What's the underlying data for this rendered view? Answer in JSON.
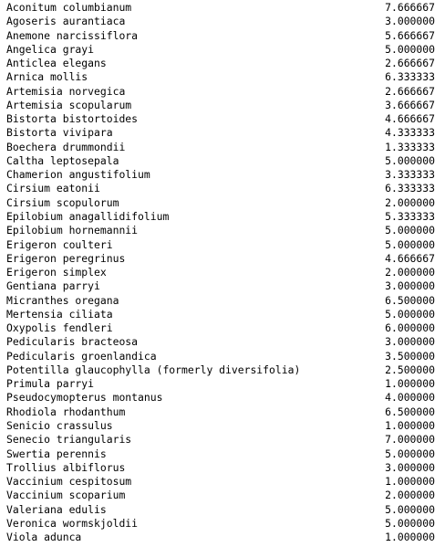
{
  "rows": [
    {
      "name": "Aconitum columbianum",
      "value": "7.666667"
    },
    {
      "name": "Agoseris aurantiaca",
      "value": "3.000000"
    },
    {
      "name": "Anemone narcissiflora",
      "value": "5.666667"
    },
    {
      "name": "Angelica grayi",
      "value": "5.000000"
    },
    {
      "name": "Anticlea elegans",
      "value": "2.666667"
    },
    {
      "name": "Arnica mollis",
      "value": "6.333333"
    },
    {
      "name": "Artemisia norvegica",
      "value": "2.666667"
    },
    {
      "name": "Artemisia scopularum",
      "value": "3.666667"
    },
    {
      "name": "Bistorta bistortoides",
      "value": "4.666667"
    },
    {
      "name": "Bistorta vivipara",
      "value": "4.333333"
    },
    {
      "name": "Boechera drummondii",
      "value": "1.333333"
    },
    {
      "name": "Caltha leptosepala",
      "value": "5.000000"
    },
    {
      "name": "Chamerion angustifolium",
      "value": "3.333333"
    },
    {
      "name": "Cirsium eatonii",
      "value": "6.333333"
    },
    {
      "name": "Cirsium scopulorum",
      "value": "2.000000"
    },
    {
      "name": "Epilobium anagallidifolium",
      "value": "5.333333"
    },
    {
      "name": "Epilobium hornemannii",
      "value": "5.000000"
    },
    {
      "name": "Erigeron coulteri",
      "value": "5.000000"
    },
    {
      "name": "Erigeron peregrinus",
      "value": "4.666667"
    },
    {
      "name": "Erigeron simplex",
      "value": "2.000000"
    },
    {
      "name": "Gentiana parryi",
      "value": "3.000000"
    },
    {
      "name": "Micranthes oregana",
      "value": "6.500000"
    },
    {
      "name": "Mertensia ciliata",
      "value": "5.000000"
    },
    {
      "name": "Oxypolis fendleri",
      "value": "6.000000"
    },
    {
      "name": "Pedicularis bracteosa",
      "value": "3.000000"
    },
    {
      "name": "Pedicularis groenlandica",
      "value": "3.500000"
    },
    {
      "name": "Potentilla glaucophylla (formerly diversifolia)",
      "value": "2.500000"
    },
    {
      "name": "Primula parryi",
      "value": "1.000000"
    },
    {
      "name": "Pseudocymopterus montanus",
      "value": "4.000000"
    },
    {
      "name": "Rhodiola rhodanthum",
      "value": "6.500000"
    },
    {
      "name": "Senicio crassulus",
      "value": "1.000000"
    },
    {
      "name": "Senecio triangularis",
      "value": "7.000000"
    },
    {
      "name": "Swertia perennis",
      "value": "5.000000"
    },
    {
      "name": "Trollius albiflorus",
      "value": "3.000000"
    },
    {
      "name": "Vaccinium cespitosum",
      "value": "1.000000"
    },
    {
      "name": "Vaccinium scoparium",
      "value": "2.000000"
    },
    {
      "name": "Valeriana edulis",
      "value": "5.000000"
    },
    {
      "name": "Veronica wormskjoldii",
      "value": "5.000000"
    },
    {
      "name": "Viola adunca",
      "value": "1.000000"
    }
  ]
}
